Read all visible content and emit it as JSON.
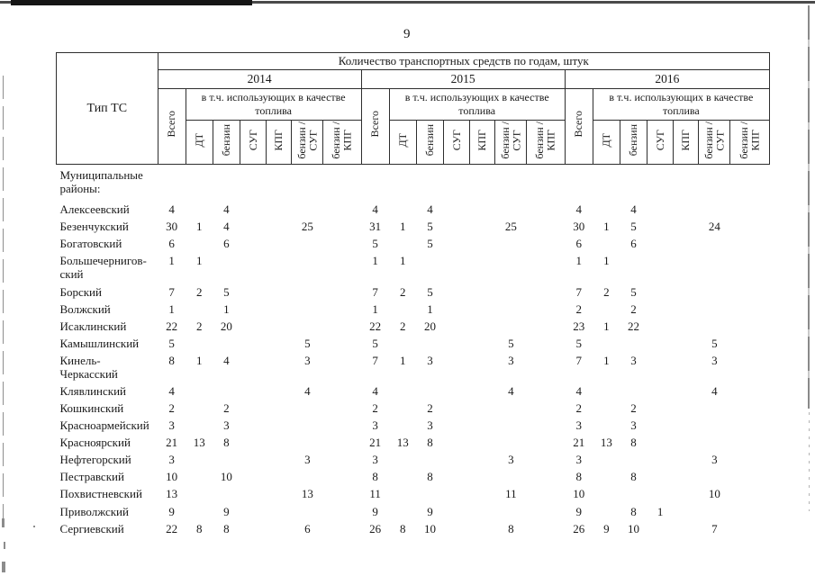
{
  "page": {
    "number": "9"
  },
  "table": {
    "col_header": "Тип ТС",
    "title": "Количество транспортных средств по годам, штук",
    "years": [
      "2014",
      "2015",
      "2016"
    ],
    "total_label": "Всего",
    "subheader": "в т.ч. использующих в качестве топлива",
    "fuel_labels": [
      "ДТ",
      "бензин",
      "СУГ",
      "КПГ",
      "бензин /\nСУГ",
      "бензин /\nКПГ"
    ],
    "group_label": "Муниципальные районы:",
    "rows": [
      {
        "name": "Алексеевский",
        "values": [
          [
            "4",
            "",
            "4",
            "",
            "",
            "",
            ""
          ],
          [
            "4",
            "",
            "4",
            "",
            "",
            "",
            ""
          ],
          [
            "4",
            "",
            "4",
            "",
            "",
            "",
            ""
          ]
        ]
      },
      {
        "name": "Безенчукский",
        "values": [
          [
            "30",
            "1",
            "4",
            "",
            "",
            "25",
            ""
          ],
          [
            "31",
            "1",
            "5",
            "",
            "",
            "25",
            ""
          ],
          [
            "30",
            "1",
            "5",
            "",
            "",
            "24",
            ""
          ]
        ]
      },
      {
        "name": "Богатовский",
        "values": [
          [
            "6",
            "",
            "6",
            "",
            "",
            "",
            ""
          ],
          [
            "5",
            "",
            "5",
            "",
            "",
            "",
            ""
          ],
          [
            "6",
            "",
            "6",
            "",
            "",
            "",
            ""
          ]
        ]
      },
      {
        "name": "Большечернигов-ский",
        "values": [
          [
            "1",
            "1",
            "",
            "",
            "",
            "",
            ""
          ],
          [
            "1",
            "1",
            "",
            "",
            "",
            "",
            ""
          ],
          [
            "1",
            "1",
            "",
            "",
            "",
            "",
            ""
          ]
        ]
      },
      {
        "name": "Борский",
        "values": [
          [
            "7",
            "2",
            "5",
            "",
            "",
            "",
            ""
          ],
          [
            "7",
            "2",
            "5",
            "",
            "",
            "",
            ""
          ],
          [
            "7",
            "2",
            "5",
            "",
            "",
            "",
            ""
          ]
        ]
      },
      {
        "name": "Волжский",
        "values": [
          [
            "1",
            "",
            "1",
            "",
            "",
            "",
            ""
          ],
          [
            "1",
            "",
            "1",
            "",
            "",
            "",
            ""
          ],
          [
            "2",
            "",
            "2",
            "",
            "",
            "",
            ""
          ]
        ]
      },
      {
        "name": "Исаклинский",
        "values": [
          [
            "22",
            "2",
            "20",
            "",
            "",
            "",
            ""
          ],
          [
            "22",
            "2",
            "20",
            "",
            "",
            "",
            ""
          ],
          [
            "23",
            "1",
            "22",
            "",
            "",
            "",
            ""
          ]
        ]
      },
      {
        "name": "Камышлинский",
        "values": [
          [
            "5",
            "",
            "",
            "",
            "",
            "5",
            ""
          ],
          [
            "5",
            "",
            "",
            "",
            "",
            "5",
            ""
          ],
          [
            "5",
            "",
            "",
            "",
            "",
            "5",
            ""
          ]
        ]
      },
      {
        "name": "Кинель-Черкасский",
        "values": [
          [
            "8",
            "1",
            "4",
            "",
            "",
            "3",
            ""
          ],
          [
            "7",
            "1",
            "3",
            "",
            "",
            "3",
            ""
          ],
          [
            "7",
            "1",
            "3",
            "",
            "",
            "3",
            ""
          ]
        ]
      },
      {
        "name": "Клявлинский",
        "values": [
          [
            "4",
            "",
            "",
            "",
            "",
            "4",
            ""
          ],
          [
            "4",
            "",
            "",
            "",
            "",
            "4",
            ""
          ],
          [
            "4",
            "",
            "",
            "",
            "",
            "4",
            ""
          ]
        ]
      },
      {
        "name": "Кошкинский",
        "values": [
          [
            "2",
            "",
            "2",
            "",
            "",
            "",
            ""
          ],
          [
            "2",
            "",
            "2",
            "",
            "",
            "",
            ""
          ],
          [
            "2",
            "",
            "2",
            "",
            "",
            "",
            ""
          ]
        ]
      },
      {
        "name": "Красноармейский",
        "values": [
          [
            "3",
            "",
            "3",
            "",
            "",
            "",
            ""
          ],
          [
            "3",
            "",
            "3",
            "",
            "",
            "",
            ""
          ],
          [
            "3",
            "",
            "3",
            "",
            "",
            "",
            ""
          ]
        ]
      },
      {
        "name": "Красноярский",
        "values": [
          [
            "21",
            "13",
            "8",
            "",
            "",
            "",
            ""
          ],
          [
            "21",
            "13",
            "8",
            "",
            "",
            "",
            ""
          ],
          [
            "21",
            "13",
            "8",
            "",
            "",
            "",
            ""
          ]
        ]
      },
      {
        "name": "Нефтегорский",
        "values": [
          [
            "3",
            "",
            "",
            "",
            "",
            "3",
            ""
          ],
          [
            "3",
            "",
            "",
            "",
            "",
            "3",
            ""
          ],
          [
            "3",
            "",
            "",
            "",
            "",
            "3",
            ""
          ]
        ]
      },
      {
        "name": "Пестравский",
        "values": [
          [
            "10",
            "",
            "10",
            "",
            "",
            "",
            ""
          ],
          [
            "8",
            "",
            "8",
            "",
            "",
            "",
            ""
          ],
          [
            "8",
            "",
            "8",
            "",
            "",
            "",
            ""
          ]
        ]
      },
      {
        "name": "Похвистневский",
        "values": [
          [
            "13",
            "",
            "",
            "",
            "",
            "13",
            ""
          ],
          [
            "11",
            "",
            "",
            "",
            "",
            "11",
            ""
          ],
          [
            "10",
            "",
            "",
            "",
            "",
            "10",
            ""
          ]
        ]
      },
      {
        "name": "Приволжский",
        "values": [
          [
            "9",
            "",
            "9",
            "",
            "",
            "",
            ""
          ],
          [
            "9",
            "",
            "9",
            "",
            "",
            "",
            ""
          ],
          [
            "9",
            "",
            "8",
            "1",
            "",
            "",
            ""
          ]
        ]
      },
      {
        "name": "Сергиевский",
        "values": [
          [
            "22",
            "8",
            "8",
            "",
            "",
            "6",
            ""
          ],
          [
            "26",
            "8",
            "10",
            "",
            "",
            "8",
            ""
          ],
          [
            "26",
            "9",
            "10",
            "",
            "",
            "7",
            ""
          ]
        ]
      }
    ]
  }
}
